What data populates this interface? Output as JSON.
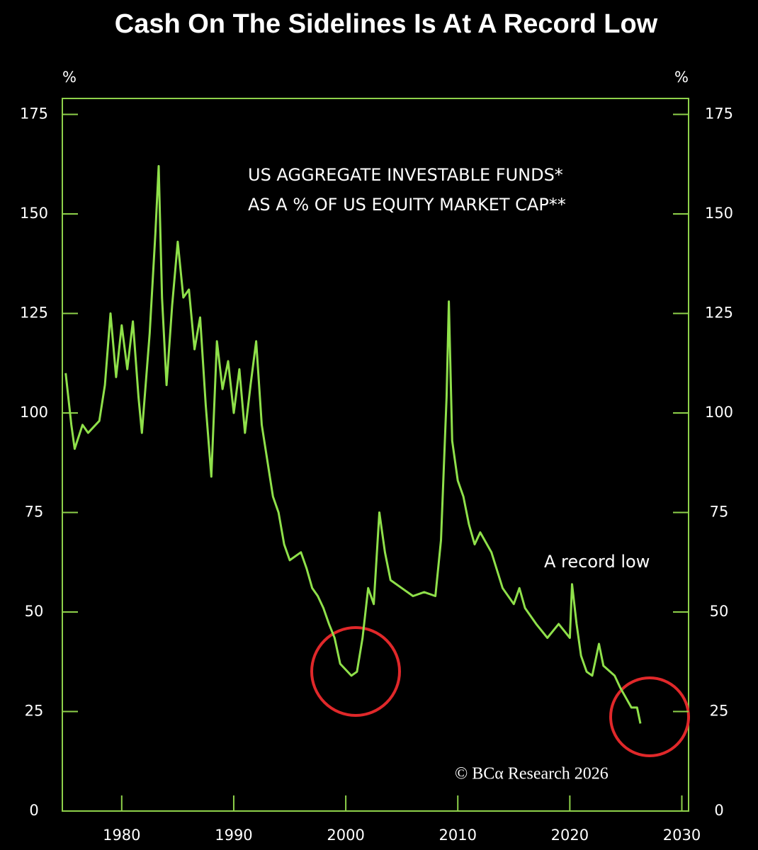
{
  "chart_data": {
    "type": "line",
    "title": "Cash On The Sidelines Is At A Record Low",
    "y_unit": "%",
    "y2_unit": "%",
    "annotations": [
      "US AGGREGATE INVESTABLE FUNDS*",
      "AS A % OF US EQUITY MARKET CAP**",
      "A record low",
      "© BCα Research 2026"
    ],
    "x": [
      1975.0,
      1975.5,
      1975.8,
      1976.5,
      1977,
      1978,
      1978.5,
      1979,
      1979.5,
      1980,
      1980.5,
      1981,
      1981.5,
      1981.8,
      1982.5,
      1983,
      1983.3,
      1983.6,
      1984,
      1984.5,
      1985,
      1985.5,
      1986,
      1986.5,
      1987,
      1987.5,
      1988,
      1988.5,
      1989,
      1989.5,
      1990,
      1990.5,
      1991,
      1991.5,
      1992,
      1992.5,
      1993,
      1993.5,
      1994,
      1994.5,
      1995,
      1996,
      1996.5,
      1997,
      1997.5,
      1998,
      1998.5,
      1999,
      1999.5,
      2000,
      2000.5,
      2001,
      2001.5,
      2002,
      2002.5,
      2003,
      2003.5,
      2004,
      2005,
      2006,
      2007,
      2008,
      2008.5,
      2009,
      2009.2,
      2009.5,
      2010,
      2010.5,
      2011,
      2011.5,
      2012,
      2013,
      2014,
      2015,
      2015.5,
      2016,
      2017,
      2018,
      2019,
      2020,
      2020.2,
      2020.6,
      2021,
      2021.5,
      2022,
      2022.6,
      2023,
      2024,
      2024.5,
      2025,
      2025.5,
      2026,
      2026.3
    ],
    "series": [
      {
        "name": "US aggregate investable funds",
        "color": "#8fe04a",
        "values": [
          110,
          97,
          91,
          97,
          95,
          98,
          107,
          125,
          109,
          122,
          111,
          123,
          104,
          95,
          120,
          145,
          162,
          129,
          107,
          127,
          143,
          129,
          131,
          116,
          124,
          102,
          84,
          118,
          106,
          113,
          100,
          111,
          95,
          107,
          118,
          97,
          88,
          79,
          75,
          67,
          63,
          65,
          61,
          56,
          54,
          51,
          47,
          43.5,
          37,
          35.5,
          34,
          35,
          43.5,
          56,
          52,
          75,
          65,
          58,
          56,
          54,
          55,
          54,
          68,
          104,
          128,
          93,
          83,
          79,
          72,
          67,
          70,
          65,
          56,
          52,
          56,
          51,
          47,
          43.5,
          47,
          43.5,
          57,
          47,
          39,
          35,
          34,
          42,
          36.5,
          34,
          31,
          28.5,
          26,
          26,
          22
        ]
      }
    ],
    "xlim": [
      1974.7,
      2030.6
    ],
    "xticks": [
      1980,
      1990,
      2000,
      2010,
      2020,
      2030
    ],
    "ylim": [
      0,
      179
    ],
    "yticks": [
      0,
      25,
      50,
      75,
      100,
      125,
      150,
      175
    ],
    "y2lim": [
      0,
      179
    ],
    "y2ticks": [
      0,
      25,
      50,
      75,
      100,
      125,
      150,
      175
    ]
  }
}
